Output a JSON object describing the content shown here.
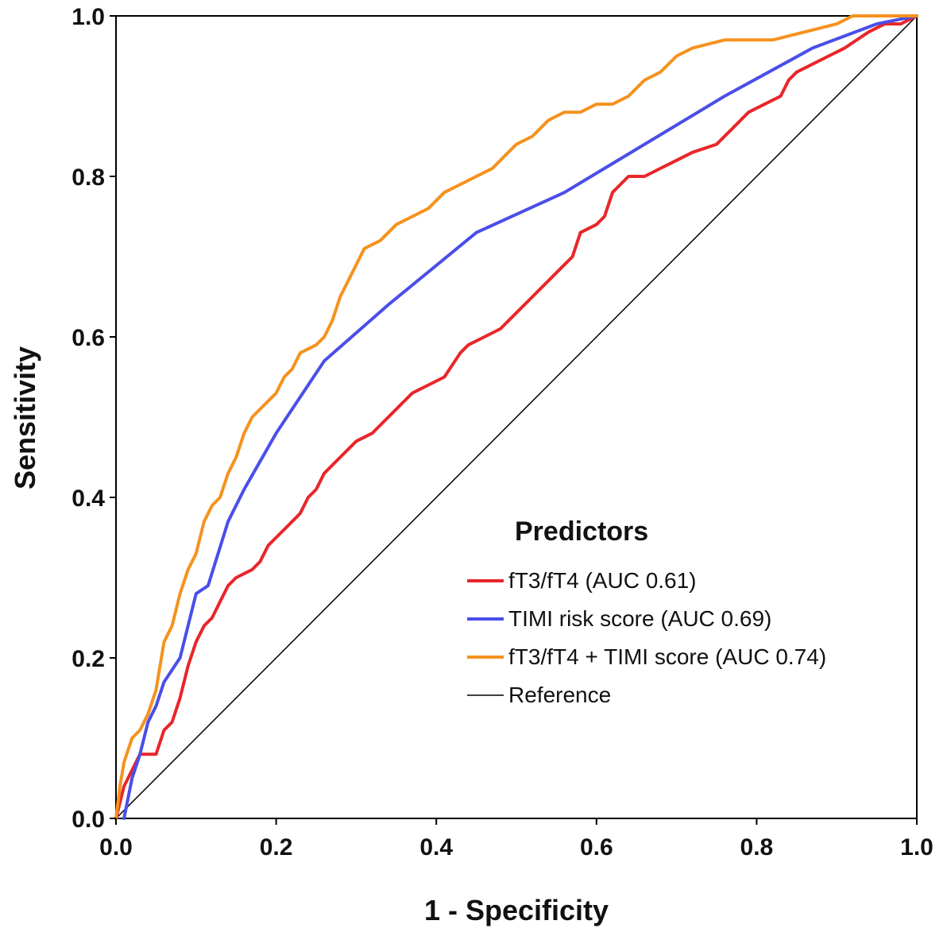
{
  "chart_data": {
    "type": "line",
    "title": "",
    "xlabel": "1 - Specificity",
    "ylabel": "Sensitivity",
    "xlim": [
      0,
      1
    ],
    "ylim": [
      0,
      1
    ],
    "xticks": [
      "0.0",
      "0.2",
      "0.4",
      "0.6",
      "0.8",
      "1.0"
    ],
    "yticks": [
      "0.0",
      "0.2",
      "0.4",
      "0.6",
      "0.8",
      "1.0"
    ],
    "grid": false,
    "legend": {
      "title": "Predictors",
      "placement": "bottom-right"
    },
    "series": [
      {
        "name": "fT3/fT4",
        "legend_label": "fT3/fT4  (AUC 0.61)",
        "auc": 0.61,
        "color": "#e8262a",
        "points": [
          [
            0,
            0
          ],
          [
            0.01,
            0.04
          ],
          [
            0.03,
            0.08
          ],
          [
            0.05,
            0.08
          ],
          [
            0.06,
            0.11
          ],
          [
            0.07,
            0.12
          ],
          [
            0.08,
            0.15
          ],
          [
            0.09,
            0.19
          ],
          [
            0.1,
            0.22
          ],
          [
            0.11,
            0.24
          ],
          [
            0.12,
            0.25
          ],
          [
            0.13,
            0.27
          ],
          [
            0.14,
            0.29
          ],
          [
            0.15,
            0.3
          ],
          [
            0.17,
            0.31
          ],
          [
            0.18,
            0.32
          ],
          [
            0.19,
            0.34
          ],
          [
            0.2,
            0.35
          ],
          [
            0.21,
            0.36
          ],
          [
            0.22,
            0.37
          ],
          [
            0.23,
            0.38
          ],
          [
            0.24,
            0.4
          ],
          [
            0.25,
            0.41
          ],
          [
            0.26,
            0.43
          ],
          [
            0.27,
            0.44
          ],
          [
            0.28,
            0.45
          ],
          [
            0.29,
            0.46
          ],
          [
            0.3,
            0.47
          ],
          [
            0.32,
            0.48
          ],
          [
            0.33,
            0.49
          ],
          [
            0.35,
            0.51
          ],
          [
            0.37,
            0.53
          ],
          [
            0.39,
            0.54
          ],
          [
            0.41,
            0.55
          ],
          [
            0.43,
            0.58
          ],
          [
            0.44,
            0.59
          ],
          [
            0.46,
            0.6
          ],
          [
            0.48,
            0.61
          ],
          [
            0.49,
            0.62
          ],
          [
            0.5,
            0.63
          ],
          [
            0.52,
            0.65
          ],
          [
            0.54,
            0.67
          ],
          [
            0.56,
            0.69
          ],
          [
            0.57,
            0.7
          ],
          [
            0.58,
            0.73
          ],
          [
            0.6,
            0.74
          ],
          [
            0.61,
            0.75
          ],
          [
            0.62,
            0.78
          ],
          [
            0.63,
            0.79
          ],
          [
            0.64,
            0.8
          ],
          [
            0.66,
            0.8
          ],
          [
            0.68,
            0.81
          ],
          [
            0.7,
            0.82
          ],
          [
            0.72,
            0.83
          ],
          [
            0.75,
            0.84
          ],
          [
            0.77,
            0.86
          ],
          [
            0.79,
            0.88
          ],
          [
            0.81,
            0.89
          ],
          [
            0.83,
            0.9
          ],
          [
            0.84,
            0.92
          ],
          [
            0.85,
            0.93
          ],
          [
            0.87,
            0.94
          ],
          [
            0.89,
            0.95
          ],
          [
            0.91,
            0.96
          ],
          [
            0.94,
            0.98
          ],
          [
            0.96,
            0.99
          ],
          [
            0.98,
            0.99
          ],
          [
            1,
            1
          ]
        ]
      },
      {
        "name": "TIMI risk score",
        "legend_label": "TIMI risk score (AUC 0.69)",
        "auc": 0.69,
        "color": "#4a4ee8",
        "points": [
          [
            0.01,
            0
          ],
          [
            0.02,
            0.05
          ],
          [
            0.03,
            0.08
          ],
          [
            0.04,
            0.12
          ],
          [
            0.05,
            0.14
          ],
          [
            0.06,
            0.17
          ],
          [
            0.08,
            0.2
          ],
          [
            0.1,
            0.28
          ],
          [
            0.115,
            0.29
          ],
          [
            0.14,
            0.37
          ],
          [
            0.16,
            0.41
          ],
          [
            0.2,
            0.48
          ],
          [
            0.26,
            0.57
          ],
          [
            0.34,
            0.64
          ],
          [
            0.45,
            0.73
          ],
          [
            0.56,
            0.78
          ],
          [
            0.66,
            0.84
          ],
          [
            0.76,
            0.9
          ],
          [
            0.87,
            0.96
          ],
          [
            0.95,
            0.99
          ],
          [
            1,
            1
          ]
        ]
      },
      {
        "name": "fT3/fT4 + TIMI score",
        "legend_label": "fT3/fT4 + TIMI score (AUC 0.74)",
        "auc": 0.74,
        "color": "#f5921e",
        "points": [
          [
            0,
            0
          ],
          [
            0.005,
            0.04
          ],
          [
            0.01,
            0.07
          ],
          [
            0.02,
            0.1
          ],
          [
            0.03,
            0.11
          ],
          [
            0.04,
            0.13
          ],
          [
            0.05,
            0.16
          ],
          [
            0.06,
            0.22
          ],
          [
            0.07,
            0.24
          ],
          [
            0.08,
            0.28
          ],
          [
            0.09,
            0.31
          ],
          [
            0.1,
            0.33
          ],
          [
            0.11,
            0.37
          ],
          [
            0.12,
            0.39
          ],
          [
            0.13,
            0.4
          ],
          [
            0.14,
            0.43
          ],
          [
            0.15,
            0.45
          ],
          [
            0.16,
            0.48
          ],
          [
            0.17,
            0.5
          ],
          [
            0.18,
            0.51
          ],
          [
            0.2,
            0.53
          ],
          [
            0.21,
            0.55
          ],
          [
            0.22,
            0.56
          ],
          [
            0.23,
            0.58
          ],
          [
            0.25,
            0.59
          ],
          [
            0.26,
            0.6
          ],
          [
            0.27,
            0.62
          ],
          [
            0.28,
            0.65
          ],
          [
            0.29,
            0.67
          ],
          [
            0.3,
            0.69
          ],
          [
            0.31,
            0.71
          ],
          [
            0.33,
            0.72
          ],
          [
            0.35,
            0.74
          ],
          [
            0.37,
            0.75
          ],
          [
            0.39,
            0.76
          ],
          [
            0.41,
            0.78
          ],
          [
            0.43,
            0.79
          ],
          [
            0.45,
            0.8
          ],
          [
            0.47,
            0.81
          ],
          [
            0.48,
            0.82
          ],
          [
            0.5,
            0.84
          ],
          [
            0.52,
            0.85
          ],
          [
            0.54,
            0.87
          ],
          [
            0.56,
            0.88
          ],
          [
            0.58,
            0.88
          ],
          [
            0.6,
            0.89
          ],
          [
            0.62,
            0.89
          ],
          [
            0.64,
            0.9
          ],
          [
            0.66,
            0.92
          ],
          [
            0.68,
            0.93
          ],
          [
            0.7,
            0.95
          ],
          [
            0.72,
            0.96
          ],
          [
            0.76,
            0.97
          ],
          [
            0.82,
            0.97
          ],
          [
            0.86,
            0.98
          ],
          [
            0.9,
            0.99
          ],
          [
            0.92,
            1
          ],
          [
            1,
            1
          ]
        ]
      },
      {
        "name": "Reference",
        "legend_label": "Reference",
        "color": "#000000",
        "points": [
          [
            0,
            0
          ],
          [
            1,
            1
          ]
        ]
      }
    ]
  }
}
